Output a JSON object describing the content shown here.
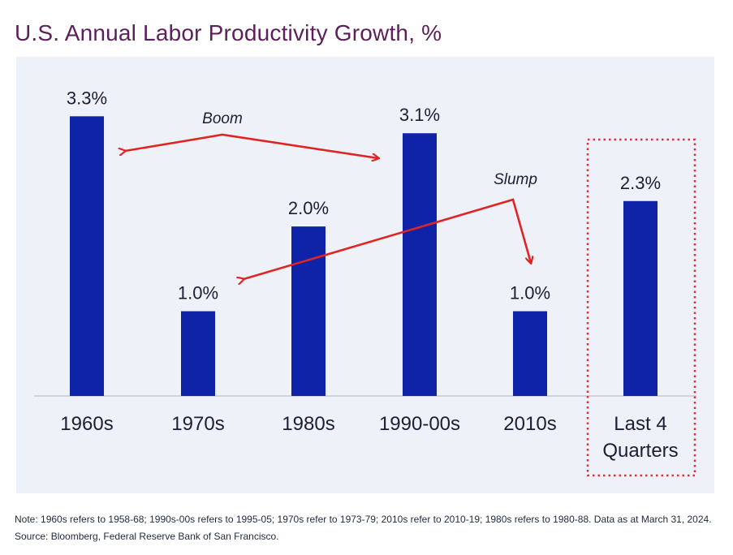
{
  "title": "U.S. Annual Labor Productivity Growth, %",
  "footnote": "Note: 1960s refers to 1958-68; 1990s-00s refers to 1995-05; 1970s refer to 1973-79; 2010s refer to 2010-19; 1980s refers to 1980-88. Data as at March 31, 2024. Source: Bloomberg, Federal Reserve Bank of San Francisco.",
  "colors": {
    "bar": "#0f23a8",
    "arrow": "#e02424",
    "highlight_box": "#d9333a",
    "panel": "#eef1f8",
    "title": "#5b1f5b"
  },
  "chart_data": {
    "type": "bar",
    "title": "U.S. Annual Labor Productivity Growth, %",
    "xlabel": "",
    "ylabel": "",
    "ylim": [
      0,
      3.6
    ],
    "grid": false,
    "categories": [
      "1960s",
      "1970s",
      "1980s",
      "1990-00s",
      "2010s",
      "Last 4 Quarters"
    ],
    "values": [
      3.3,
      1.0,
      2.0,
      3.1,
      1.0,
      2.3
    ],
    "data_labels": [
      "3.3%",
      "1.0%",
      "2.0%",
      "3.1%",
      "1.0%",
      "2.3%"
    ],
    "highlighted_category": "Last 4 Quarters",
    "annotations": [
      {
        "text": "Boom",
        "connects": [
          "1960s",
          "1990-00s"
        ]
      },
      {
        "text": "Slump",
        "connects": [
          "1970s",
          "2010s"
        ]
      }
    ]
  }
}
